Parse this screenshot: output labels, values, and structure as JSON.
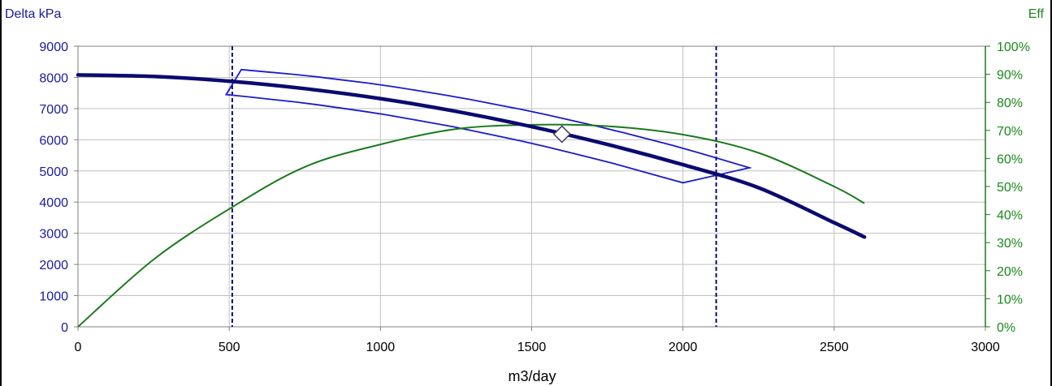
{
  "chart_data": {
    "type": "line",
    "ylabel_left": "Delta kPa",
    "ylabel_right": "Eff",
    "xlabel": "m3/day",
    "xlim": [
      0,
      3000
    ],
    "ylim_left": [
      0,
      9000
    ],
    "ylim_right": [
      0,
      100
    ],
    "x_ticks": [
      "0",
      "500",
      "1000",
      "1500",
      "2000",
      "2500",
      "3000"
    ],
    "y_left_ticks": [
      "0",
      "1000",
      "2000",
      "3000",
      "4000",
      "5000",
      "6000",
      "7000",
      "8000",
      "9000"
    ],
    "y_right_ticks": [
      "0%",
      "10%",
      "20%",
      "30%",
      "40%",
      "50%",
      "60%",
      "70%",
      "80%",
      "90%",
      "100%"
    ],
    "grid": true,
    "colors": {
      "head_curve": "#0a0a70",
      "operating_range": "#1a1acc",
      "efficiency": "#1a7a1a",
      "limit_lines": "#0a0a70",
      "grid": "#c0c0c0"
    },
    "series": [
      {
        "axis": "left",
        "style": "thick",
        "x": [
          0,
          250,
          500,
          750,
          1000,
          1250,
          1500,
          1750,
          2000,
          2250,
          2500,
          2600
        ],
        "y": [
          8080,
          8030,
          7880,
          7640,
          7320,
          6910,
          6420,
          5850,
          5200,
          4460,
          3340,
          2880
        ]
      },
      {
        "axis": "right",
        "style": "thin",
        "x": [
          0,
          250,
          500,
          750,
          1000,
          1250,
          1500,
          1750,
          2000,
          2250,
          2500,
          2600
        ],
        "y": [
          0,
          24,
          42,
          57,
          65,
          70.5,
          72,
          71.5,
          68.5,
          62,
          50,
          44
        ]
      }
    ],
    "operating_window": {
      "axis": "left",
      "x": [
        540,
        2220,
        2000,
        490,
        540
      ],
      "y": [
        8250,
        5100,
        4620,
        7450,
        8250
      ]
    },
    "limit_lines_x": [
      510,
      2110
    ],
    "marker": {
      "axis": "left",
      "x": 1600,
      "y": 6180
    }
  }
}
